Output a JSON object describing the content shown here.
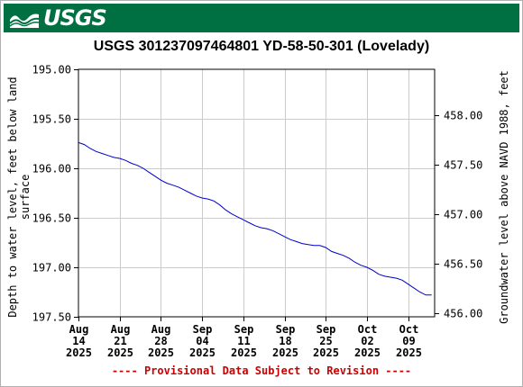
{
  "header": {
    "logo_text": "USGS",
    "logo_icon": "usgs-wave-icon"
  },
  "title": "USGS 301237097464801 YD-58-50-301 (Lovelady)",
  "footer_note": "---- Provisional Data Subject to Revision ----",
  "colors": {
    "banner": "#006f41",
    "series": "#0000cc",
    "note": "#cc0000",
    "grid": "#cccccc"
  },
  "chart_data": {
    "type": "line",
    "title": "USGS 301237097464801 YD-58-50-301 (Lovelady)",
    "ylabel": "Depth to water level, feet below land surface",
    "ylabel_lines": [
      "Depth to water level, feet below land",
      "surface"
    ],
    "y2label": "Groundwater level above NAVD 1988, feet",
    "y_inverted": true,
    "ylim": [
      195.0,
      197.5
    ],
    "y2lim": [
      458.46,
      455.96
    ],
    "y_ticks": [
      "195.00",
      "195.50",
      "196.00",
      "196.50",
      "197.00",
      "197.50"
    ],
    "y_tick_values": [
      195.0,
      195.5,
      196.0,
      196.5,
      197.0,
      197.5
    ],
    "y2_ticks": [
      "458.00",
      "457.50",
      "457.00",
      "456.50",
      "456.00"
    ],
    "y2_tick_values": [
      458.0,
      457.5,
      457.0,
      456.5,
      456.0
    ],
    "xlim": [
      "2025-08-14",
      "2025-10-13"
    ],
    "x_ticks": [
      {
        "date": "2025-08-14",
        "line1": "Aug",
        "line2": "14",
        "line3": "2025"
      },
      {
        "date": "2025-08-21",
        "line1": "Aug",
        "line2": "21",
        "line3": "2025"
      },
      {
        "date": "2025-08-28",
        "line1": "Aug",
        "line2": "28",
        "line3": "2025"
      },
      {
        "date": "2025-09-04",
        "line1": "Sep",
        "line2": "04",
        "line3": "2025"
      },
      {
        "date": "2025-09-11",
        "line1": "Sep",
        "line2": "11",
        "line3": "2025"
      },
      {
        "date": "2025-09-18",
        "line1": "Sep",
        "line2": "18",
        "line3": "2025"
      },
      {
        "date": "2025-09-25",
        "line1": "Sep",
        "line2": "25",
        "line3": "2025"
      },
      {
        "date": "2025-10-02",
        "line1": "Oct",
        "line2": "02",
        "line3": "2025"
      },
      {
        "date": "2025-10-09",
        "line1": "Oct",
        "line2": "09",
        "line3": "2025"
      }
    ],
    "grid": true,
    "series": [
      {
        "points": [
          [
            "2025-08-14",
            195.74
          ],
          [
            "2025-08-15",
            195.76
          ],
          [
            "2025-08-16",
            195.8
          ],
          [
            "2025-08-17",
            195.83
          ],
          [
            "2025-08-18",
            195.85
          ],
          [
            "2025-08-19",
            195.87
          ],
          [
            "2025-08-20",
            195.89
          ],
          [
            "2025-08-21",
            195.9
          ],
          [
            "2025-08-22",
            195.92
          ],
          [
            "2025-08-23",
            195.95
          ],
          [
            "2025-08-24",
            195.97
          ],
          [
            "2025-08-25",
            196.0
          ],
          [
            "2025-08-26",
            196.04
          ],
          [
            "2025-08-27",
            196.08
          ],
          [
            "2025-08-28",
            196.12
          ],
          [
            "2025-08-29",
            196.15
          ],
          [
            "2025-08-30",
            196.17
          ],
          [
            "2025-08-31",
            196.19
          ],
          [
            "2025-09-01",
            196.22
          ],
          [
            "2025-09-02",
            196.25
          ],
          [
            "2025-09-03",
            196.28
          ],
          [
            "2025-09-04",
            196.3
          ],
          [
            "2025-09-05",
            196.31
          ],
          [
            "2025-09-06",
            196.33
          ],
          [
            "2025-09-07",
            196.37
          ],
          [
            "2025-09-08",
            196.42
          ],
          [
            "2025-09-09",
            196.46
          ],
          [
            "2025-09-10",
            196.49
          ],
          [
            "2025-09-11",
            196.52
          ],
          [
            "2025-09-12",
            196.55
          ],
          [
            "2025-09-13",
            196.58
          ],
          [
            "2025-09-14",
            196.6
          ],
          [
            "2025-09-15",
            196.61
          ],
          [
            "2025-09-16",
            196.63
          ],
          [
            "2025-09-17",
            196.66
          ],
          [
            "2025-09-18",
            196.69
          ],
          [
            "2025-09-19",
            196.72
          ],
          [
            "2025-09-20",
            196.74
          ],
          [
            "2025-09-21",
            196.76
          ],
          [
            "2025-09-22",
            196.77
          ],
          [
            "2025-09-23",
            196.78
          ],
          [
            "2025-09-24",
            196.78
          ],
          [
            "2025-09-25",
            196.8
          ],
          [
            "2025-09-26",
            196.84
          ],
          [
            "2025-09-27",
            196.86
          ],
          [
            "2025-09-28",
            196.88
          ],
          [
            "2025-09-29",
            196.91
          ],
          [
            "2025-09-30",
            196.95
          ],
          [
            "2025-10-01",
            196.98
          ],
          [
            "2025-10-02",
            197.0
          ],
          [
            "2025-10-03",
            197.03
          ],
          [
            "2025-10-04",
            197.07
          ],
          [
            "2025-10-05",
            197.09
          ],
          [
            "2025-10-06",
            197.1
          ],
          [
            "2025-10-07",
            197.11
          ],
          [
            "2025-10-08",
            197.13
          ],
          [
            "2025-10-09",
            197.17
          ],
          [
            "2025-10-10",
            197.21
          ],
          [
            "2025-10-11",
            197.25
          ],
          [
            "2025-10-12",
            197.28
          ],
          [
            "2025-10-13",
            197.28
          ]
        ]
      }
    ]
  }
}
